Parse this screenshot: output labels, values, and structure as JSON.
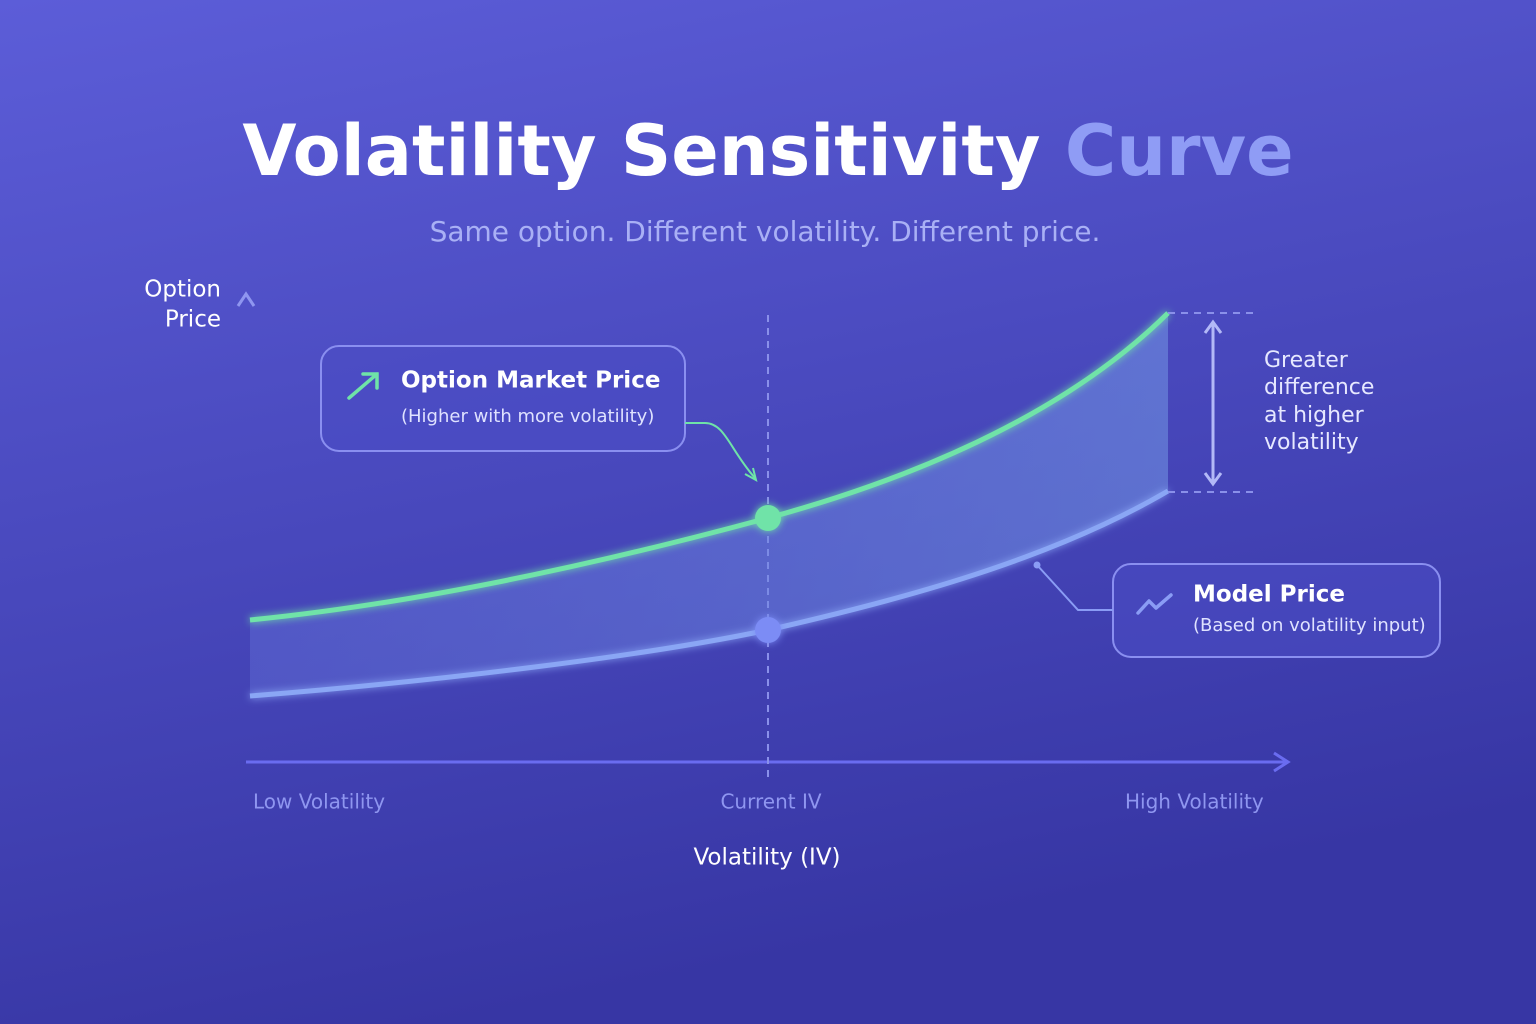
{
  "title": {
    "main": "Volatility Sensitivity",
    "accent": "Curve"
  },
  "subtitle": "Same option. Different volatility. Different price.",
  "y_axis": {
    "label_lines": [
      "Option",
      "Price"
    ]
  },
  "x_axis": {
    "label": "Volatility (IV)",
    "labels": [
      "Low Volatility",
      "Current IV",
      "High Volatility"
    ]
  },
  "callouts": [
    {
      "title": "Option Market Price",
      "subtitle": "(Higher with more volatility)"
    },
    {
      "title": "Model Price",
      "subtitle": "(Based on volatility input)"
    }
  ],
  "annotation": {
    "lines": [
      "Greater",
      "difference",
      "at higher",
      "volatility"
    ]
  }
}
